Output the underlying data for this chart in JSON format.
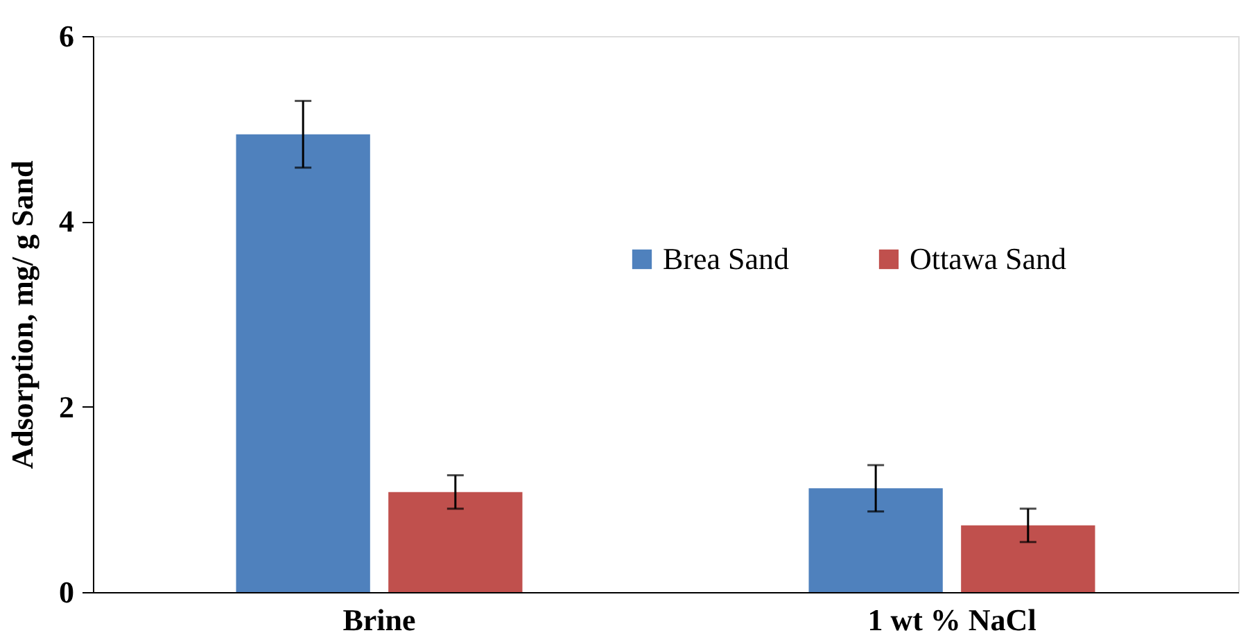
{
  "chart_data": {
    "type": "bar",
    "ylabel": "Adsorption, mg/ g Sand",
    "categories": [
      "Brine",
      "1 wt % NaCl"
    ],
    "series": [
      {
        "name": "Brea Sand",
        "color": "#4f81bd",
        "values": [
          4.94,
          1.12
        ],
        "errors": [
          0.36,
          0.25
        ]
      },
      {
        "name": "Ottawa Sand",
        "color": "#c0504d",
        "values": [
          1.08,
          0.72
        ],
        "errors": [
          0.18,
          0.18
        ]
      }
    ],
    "ylim": [
      0,
      6
    ],
    "yticks": [
      0,
      2,
      4,
      6
    ],
    "grid": false,
    "legend": "right"
  }
}
